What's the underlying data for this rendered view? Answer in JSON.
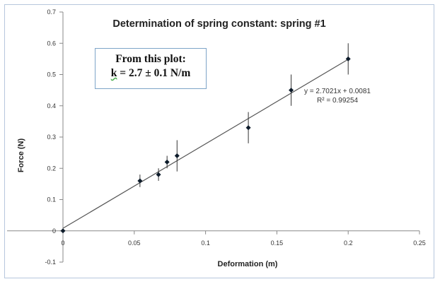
{
  "chart_data": {
    "type": "scatter",
    "title": "Determination of spring constant: spring #1",
    "xlabel": "Deformation (m)",
    "ylabel": "Force (N)",
    "xlim": [
      0,
      0.25
    ],
    "ylim": [
      -0.1,
      0.7
    ],
    "x_ticks": [
      "0",
      "0.05",
      "0.1",
      "0.15",
      "0.2",
      "0.25"
    ],
    "y_ticks": [
      "-0.1",
      "0",
      "0.1",
      "0.2",
      "0.3",
      "0.4",
      "0.5",
      "0.6",
      "0.7"
    ],
    "grid": false,
    "points": [
      {
        "x": 0.0,
        "y": 0.0,
        "err": 0.0
      },
      {
        "x": 0.054,
        "y": 0.16,
        "err": 0.02
      },
      {
        "x": 0.067,
        "y": 0.18,
        "err": 0.02
      },
      {
        "x": 0.073,
        "y": 0.22,
        "err": 0.02
      },
      {
        "x": 0.08,
        "y": 0.24,
        "err": 0.05
      },
      {
        "x": 0.13,
        "y": 0.33,
        "err": 0.05
      },
      {
        "x": 0.16,
        "y": 0.45,
        "err": 0.05
      },
      {
        "x": 0.2,
        "y": 0.55,
        "err": 0.05
      }
    ],
    "trendline": {
      "slope": 2.7021,
      "intercept": 0.0081,
      "x_range": [
        0,
        0.2
      ]
    },
    "equation_text": "y = 2.7021x + 0.0081",
    "r2_text": "R² = 0.99254",
    "colors": {
      "marker": "#0d1b2a",
      "trendline": "#555555",
      "axis": "#888888",
      "frame": "#b6c7dd"
    }
  },
  "note": {
    "line1": "From this plot:",
    "k_letter": "k",
    "line2_rest": " = 2.7 ± 0.1 N/m"
  }
}
